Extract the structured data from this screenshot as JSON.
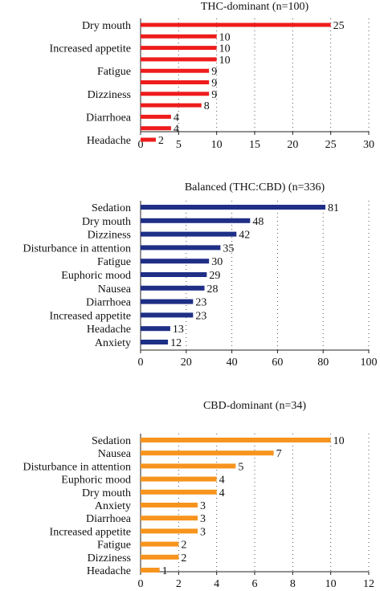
{
  "chart_data": [
    {
      "type": "bar",
      "orientation": "horizontal",
      "title": "THC-dominant (n=100)",
      "categories": [
        "Dry mouth",
        "",
        "Increased appetite",
        "",
        "Fatigue",
        "",
        "Dizziness",
        "",
        "Diarrhoea",
        "",
        "Headache"
      ],
      "values": [
        25,
        10,
        10,
        10,
        9,
        9,
        9,
        8,
        4,
        4,
        2
      ],
      "xlim": [
        0,
        30
      ],
      "ticks": [
        0,
        5,
        10,
        15,
        20,
        25,
        30
      ],
      "color": "#ee1c1c",
      "grid": "vertical dotted",
      "legend": "none"
    },
    {
      "type": "bar",
      "orientation": "horizontal",
      "title": "Balanced (THC:CBD) (n=336)",
      "categories": [
        "Sedation",
        "Dry mouth",
        "Dizziness",
        "Disturbance in attention",
        "Fatigue",
        "Euphoric mood",
        "Nausea",
        "Diarrhoea",
        "Increased appetite",
        "Headache",
        "Anxiety"
      ],
      "values": [
        81,
        48,
        42,
        35,
        30,
        29,
        28,
        23,
        23,
        13,
        12
      ],
      "xlim": [
        0,
        100
      ],
      "ticks": [
        0,
        20,
        40,
        60,
        80,
        100
      ],
      "color": "#1f2f86",
      "grid": "vertical dotted",
      "legend": "none"
    },
    {
      "type": "bar",
      "orientation": "horizontal",
      "title": "CBD-dominant (n=34)",
      "categories": [
        "Sedation",
        "Nausea",
        "Disturbance in attention",
        "Euphoric mood",
        "Dry mouth",
        "Anxiety",
        "Diarrhoea",
        "Increased appetite",
        "Fatigue",
        "Dizziness",
        "Headache"
      ],
      "values": [
        10,
        7,
        5,
        4,
        4,
        3,
        3,
        3,
        2,
        2,
        1
      ],
      "xlim": [
        0,
        12
      ],
      "ticks": [
        0,
        2,
        4,
        6,
        8,
        10,
        12
      ],
      "color": "#f7941d",
      "grid": "vertical dotted",
      "legend": "none"
    }
  ]
}
